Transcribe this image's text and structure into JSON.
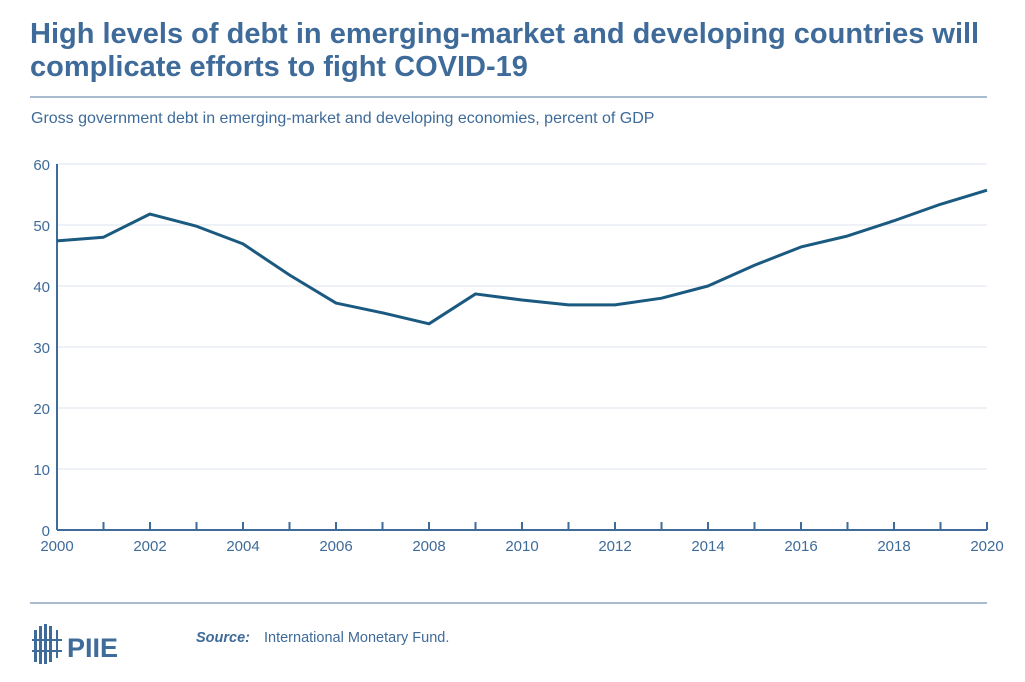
{
  "title": "High levels of debt in emerging-market and developing countries will complicate efforts to fight COVID-19",
  "subtitle": "Gross government debt in emerging-market and developing economies, percent of GDP",
  "source_label": "Source:",
  "source_text": "International Monetary Fund.",
  "logo_text": "PIIE",
  "colors": {
    "line": "#1b5a80",
    "text": "#3e6b99",
    "grid": "#dde4ec"
  },
  "chart_data": {
    "type": "line",
    "x": [
      2000,
      2001,
      2002,
      2003,
      2004,
      2005,
      2006,
      2007,
      2008,
      2009,
      2010,
      2011,
      2012,
      2013,
      2014,
      2015,
      2016,
      2017,
      2018,
      2019,
      2020
    ],
    "series": [
      {
        "values": [
          47.4,
          48.0,
          51.8,
          49.8,
          46.9,
          41.8,
          37.2,
          35.6,
          33.8,
          38.7,
          37.7,
          36.9,
          36.9,
          38.0,
          40.0,
          43.4,
          46.4,
          48.2,
          50.7,
          53.4,
          55.7
        ]
      }
    ],
    "xlim": [
      2000,
      2020
    ],
    "ylim": [
      0,
      60
    ],
    "yticks": [
      0,
      10,
      20,
      30,
      40,
      50,
      60
    ],
    "xticks": [
      2000,
      2002,
      2004,
      2006,
      2008,
      2010,
      2012,
      2014,
      2016,
      2018,
      2020
    ],
    "grid": true,
    "xlabel": "",
    "ylabel": ""
  }
}
